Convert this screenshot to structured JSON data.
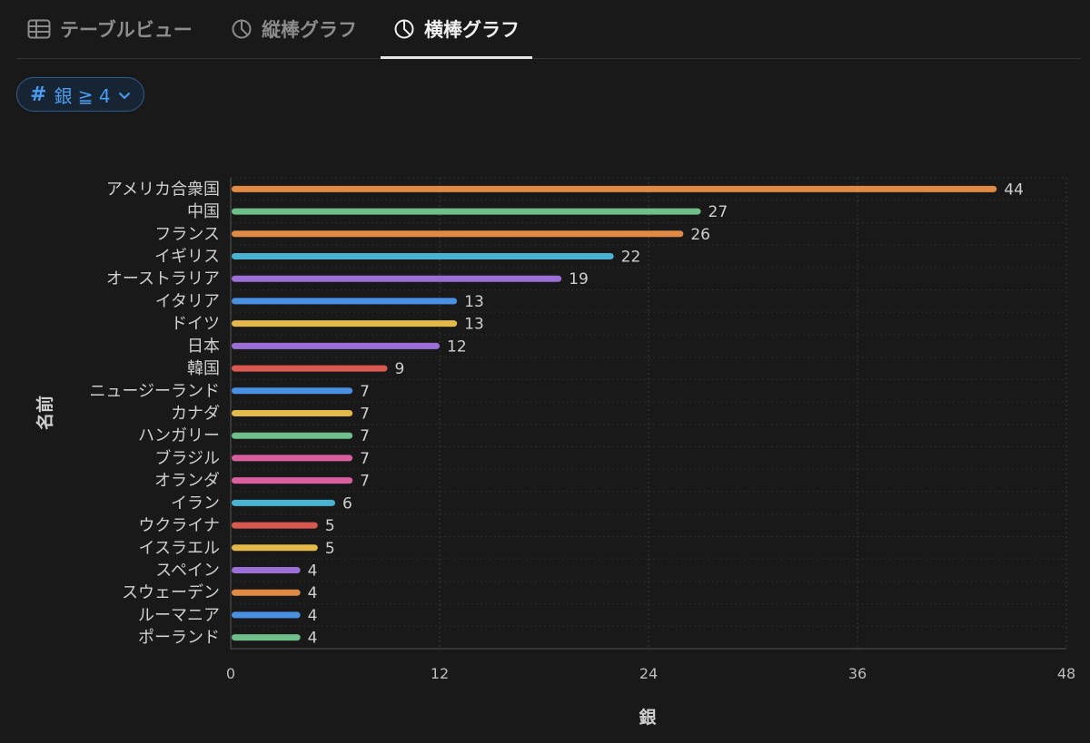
{
  "tabs": [
    {
      "label": "テーブルビュー",
      "icon": "table-icon",
      "active": false
    },
    {
      "label": "縦棒グラフ",
      "icon": "chart-pie-icon",
      "active": false
    },
    {
      "label": "横棒グラフ",
      "icon": "chart-pie-icon",
      "active": true
    }
  ],
  "filter": {
    "icon": "#",
    "label": "銀 ≧ 4",
    "chevron": "chevron-down-icon"
  },
  "chart_data": {
    "type": "bar",
    "orientation": "horizontal",
    "title": "",
    "xlabel": "銀",
    "ylabel": "名前",
    "xlim": [
      0,
      48
    ],
    "xticks": [
      0,
      12,
      24,
      36,
      48
    ],
    "grid": true,
    "categories": [
      "アメリカ合衆国",
      "中国",
      "フランス",
      "イギリス",
      "オーストラリア",
      "イタリア",
      "ドイツ",
      "日本",
      "韓国",
      "ニュージーランド",
      "カナダ",
      "ハンガリー",
      "ブラジル",
      "オランダ",
      "イラン",
      "ウクライナ",
      "イスラエル",
      "スペイン",
      "スウェーデン",
      "ルーマニア",
      "ポーランド"
    ],
    "values": [
      44,
      27,
      26,
      22,
      19,
      13,
      13,
      12,
      9,
      7,
      7,
      7,
      7,
      7,
      6,
      5,
      5,
      4,
      4,
      4,
      4
    ],
    "colors": [
      "#e08a45",
      "#6fbf8a",
      "#e08a45",
      "#4ab3d1",
      "#9b6fd6",
      "#4a90e2",
      "#e3b94a",
      "#9b6fd6",
      "#d9584f",
      "#4a90e2",
      "#e3b94a",
      "#6fbf8a",
      "#d95f9e",
      "#d95f9e",
      "#4ab3d1",
      "#d9584f",
      "#e3b94a",
      "#9b6fd6",
      "#e08a45",
      "#4a90e2",
      "#6fbf8a"
    ]
  }
}
